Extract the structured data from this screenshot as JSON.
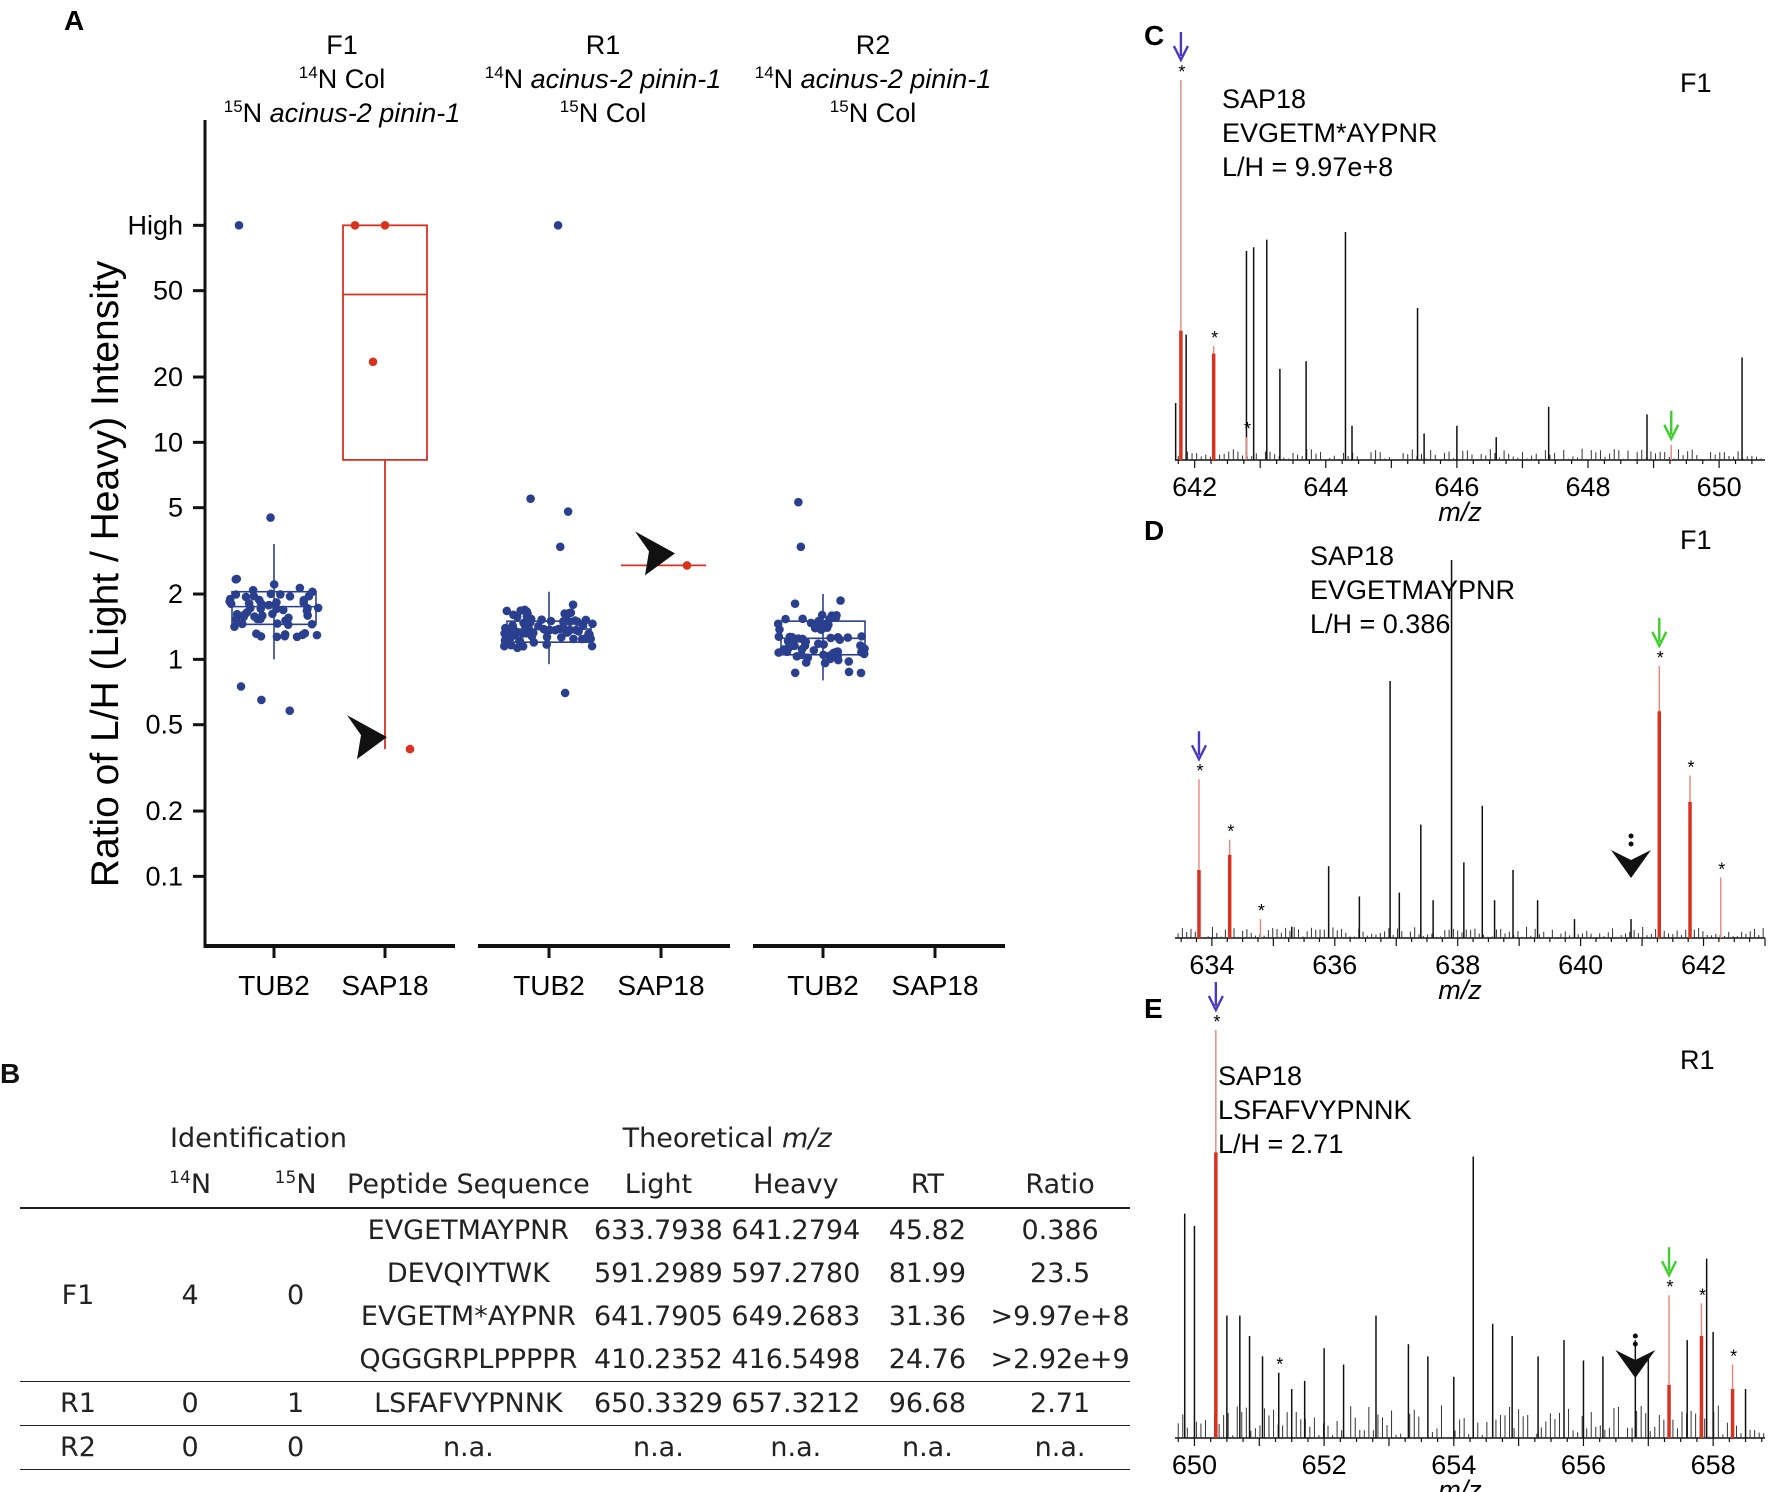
{
  "panel_labels": {
    "A": "A",
    "B": "B",
    "C": "C",
    "D": "D",
    "E": "E"
  },
  "colors": {
    "blue": "#2b3f8f",
    "red": "#d9331f",
    "black": "#111111",
    "green": "#3ecf2b",
    "purple": "#4a37c2"
  },
  "panelA": {
    "groups": [
      {
        "name": "F1",
        "line1": "Col",
        "line1_prefix": "14N",
        "line2": "acinus-2 pinin-1",
        "line2_prefix": "15N",
        "line1_italic": false,
        "line2_italic": true
      },
      {
        "name": "R1",
        "line1": "acinus-2 pinin-1",
        "line1_prefix": "14N",
        "line2": "Col",
        "line2_prefix": "15N",
        "line1_italic": true,
        "line2_italic": false
      },
      {
        "name": "R2",
        "line1": "acinus-2 pinin-1",
        "line1_prefix": "14N",
        "line2": "Col",
        "line2_prefix": "15N",
        "line1_italic": true,
        "line2_italic": false
      }
    ],
    "sup14": "14",
    "sup15": "15",
    "N": "N",
    "x_labels": [
      "TUB2",
      "SAP18",
      "TUB2",
      "SAP18",
      "TUB2",
      "SAP18"
    ]
  },
  "chart_data": [
    {
      "type": "box",
      "id": "A",
      "ylabel": "Ratio of L/H (Light / Heavy) Intensity",
      "yscale": "log",
      "ylim": [
        0.07,
        200
      ],
      "ytick_values": [
        0.1,
        0.2,
        0.5,
        1,
        2,
        5,
        10,
        20,
        50,
        100
      ],
      "ytick_labels": [
        "0.1",
        "0.2",
        "0.5",
        "1",
        "2",
        "5",
        "10",
        "20",
        "50",
        "High"
      ],
      "series": [
        {
          "group": "F1",
          "protein": "TUB2",
          "q1": 1.45,
          "median": 1.75,
          "q3": 2.05,
          "whisker_low": 1.0,
          "whisker_high": 3.4,
          "outliers": [
            100,
            4.5,
            0.58,
            0.65,
            0.75
          ],
          "n_points": 58
        },
        {
          "group": "F1",
          "protein": "SAP18",
          "q1": 8.3,
          "median": 48,
          "q3": 100,
          "whisker_low": 0.386,
          "whisker_high": 100,
          "points": [
            100,
            100,
            23.5,
            0.386
          ],
          "arrow_at": 0.386
        },
        {
          "group": "R1",
          "protein": "TUB2",
          "q1": 1.2,
          "median": 1.38,
          "q3": 1.5,
          "whisker_low": 0.95,
          "whisker_high": 2.05,
          "outliers": [
            100,
            5.5,
            4.8,
            3.3,
            0.7
          ],
          "n_points": 75
        },
        {
          "group": "R1",
          "protein": "SAP18",
          "median": 2.71,
          "points": [
            2.71
          ],
          "arrow_at": 2.71
        },
        {
          "group": "R2",
          "protein": "TUB2",
          "q1": 1.05,
          "median": 1.25,
          "q3": 1.5,
          "whisker_low": 0.8,
          "whisker_high": 2.0,
          "outliers": [
            5.3,
            3.3
          ],
          "n_points": 70
        }
      ]
    },
    {
      "type": "spectrum",
      "id": "C",
      "xlabel": "m/z",
      "xlim": [
        641.7,
        650.7
      ],
      "xtick_values": [
        642,
        644,
        646,
        648,
        650
      ],
      "xtick_labels": [
        "642",
        "644",
        "646",
        "648",
        "650"
      ],
      "labels": [
        "SAP18",
        "EVGETM*AYPNR",
        "L/H = 9.97e+8"
      ],
      "run": "F1",
      "peaks": [
        {
          "mz": 641.79,
          "h": 1.0,
          "c": "red",
          "star": true,
          "arrow": "purple"
        },
        {
          "mz": 641.79,
          "h": 0.34,
          "c": "redbar"
        },
        {
          "mz": 641.71,
          "h": 0.15,
          "c": "black"
        },
        {
          "mz": 641.87,
          "h": 0.33,
          "c": "black"
        },
        {
          "mz": 642.29,
          "h": 0.3,
          "c": "red",
          "star": true
        },
        {
          "mz": 642.29,
          "h": 0.28,
          "c": "redbar"
        },
        {
          "mz": 642.79,
          "h": 0.55,
          "c": "black"
        },
        {
          "mz": 642.79,
          "h": 0.06,
          "c": "red",
          "star": true
        },
        {
          "mz": 642.9,
          "h": 0.56,
          "c": "black"
        },
        {
          "mz": 643.1,
          "h": 0.58,
          "c": "black"
        },
        {
          "mz": 643.3,
          "h": 0.24,
          "c": "black"
        },
        {
          "mz": 643.7,
          "h": 0.26,
          "c": "black"
        },
        {
          "mz": 644.3,
          "h": 0.6,
          "c": "black"
        },
        {
          "mz": 644.4,
          "h": 0.09,
          "c": "black"
        },
        {
          "mz": 645.4,
          "h": 0.4,
          "c": "black"
        },
        {
          "mz": 645.5,
          "h": 0.07,
          "c": "black"
        },
        {
          "mz": 646.0,
          "h": 0.09,
          "c": "black"
        },
        {
          "mz": 646.6,
          "h": 0.06,
          "c": "black"
        },
        {
          "mz": 647.4,
          "h": 0.14,
          "c": "black"
        },
        {
          "mz": 648.9,
          "h": 0.12,
          "c": "black"
        },
        {
          "mz": 649.27,
          "h": 0.04,
          "c": "red",
          "arrow": "green"
        },
        {
          "mz": 650.35,
          "h": 0.27,
          "c": "black"
        }
      ]
    },
    {
      "type": "spectrum",
      "id": "D",
      "xlabel": "m/z",
      "xlim": [
        633.4,
        643.0
      ],
      "xtick_values": [
        634,
        636,
        638,
        640,
        642
      ],
      "xtick_labels": [
        "634",
        "636",
        "638",
        "640",
        "642"
      ],
      "labels": [
        "SAP18",
        "EVGETMAYPNR",
        "L/H = 0.386"
      ],
      "run": "F1",
      "peaks": [
        {
          "mz": 633.79,
          "h": 0.42,
          "c": "red",
          "star": true,
          "arrow": "purple"
        },
        {
          "mz": 633.79,
          "h": 0.18,
          "c": "redbar"
        },
        {
          "mz": 634.29,
          "h": 0.26,
          "c": "red",
          "star": true
        },
        {
          "mz": 634.29,
          "h": 0.22,
          "c": "redbar"
        },
        {
          "mz": 634.79,
          "h": 0.05,
          "c": "red",
          "star": true
        },
        {
          "mz": 635.3,
          "h": 0.03,
          "c": "black"
        },
        {
          "mz": 635.9,
          "h": 0.19,
          "c": "black"
        },
        {
          "mz": 636.4,
          "h": 0.11,
          "c": "black"
        },
        {
          "mz": 636.9,
          "h": 0.68,
          "c": "black"
        },
        {
          "mz": 637.05,
          "h": 0.12,
          "c": "black"
        },
        {
          "mz": 637.4,
          "h": 0.3,
          "c": "black"
        },
        {
          "mz": 637.6,
          "h": 0.1,
          "c": "black"
        },
        {
          "mz": 637.9,
          "h": 1.0,
          "c": "black"
        },
        {
          "mz": 638.1,
          "h": 0.2,
          "c": "black"
        },
        {
          "mz": 638.4,
          "h": 0.35,
          "c": "black"
        },
        {
          "mz": 638.6,
          "h": 0.1,
          "c": "black"
        },
        {
          "mz": 638.9,
          "h": 0.18,
          "c": "black"
        },
        {
          "mz": 639.3,
          "h": 0.1,
          "c": "black"
        },
        {
          "mz": 639.9,
          "h": 0.05,
          "c": "black"
        },
        {
          "mz": 640.82,
          "h": 0.05,
          "c": "black",
          "blackarrow": true
        },
        {
          "mz": 641.28,
          "h": 0.72,
          "c": "red",
          "star": true,
          "arrow": "green"
        },
        {
          "mz": 641.28,
          "h": 0.6,
          "c": "redbar"
        },
        {
          "mz": 641.78,
          "h": 0.43,
          "c": "red",
          "star": true
        },
        {
          "mz": 641.78,
          "h": 0.36,
          "c": "redbar"
        },
        {
          "mz": 642.28,
          "h": 0.16,
          "c": "red",
          "star": true
        }
      ]
    },
    {
      "type": "spectrum",
      "id": "E",
      "xlabel": "m/z",
      "xlim": [
        649.7,
        658.8
      ],
      "xtick_values": [
        650,
        652,
        654,
        656,
        658
      ],
      "xtick_labels": [
        "650",
        "652",
        "654",
        "656",
        "658"
      ],
      "labels": [
        "SAP18",
        "LSFAFVYPNNK",
        "L/H = 2.71"
      ],
      "run": "R1",
      "peaks": [
        {
          "mz": 650.33,
          "h": 1.0,
          "c": "red",
          "star": true,
          "arrow": "purple"
        },
        {
          "mz": 650.33,
          "h": 0.7,
          "c": "redbar"
        },
        {
          "mz": 649.85,
          "h": 0.55,
          "c": "black"
        },
        {
          "mz": 650.0,
          "h": 0.52,
          "c": "black"
        },
        {
          "mz": 650.5,
          "h": 0.3,
          "c": "black"
        },
        {
          "mz": 650.7,
          "h": 0.3,
          "c": "black"
        },
        {
          "mz": 650.85,
          "h": 0.25,
          "c": "black"
        },
        {
          "mz": 651.05,
          "h": 0.2,
          "c": "black"
        },
        {
          "mz": 651.3,
          "h": 0.16,
          "c": "black",
          "star": true
        },
        {
          "mz": 651.5,
          "h": 0.12,
          "c": "black"
        },
        {
          "mz": 651.7,
          "h": 0.14,
          "c": "black"
        },
        {
          "mz": 652.0,
          "h": 0.22,
          "c": "black"
        },
        {
          "mz": 652.3,
          "h": 0.18,
          "c": "black"
        },
        {
          "mz": 652.8,
          "h": 0.3,
          "c": "black"
        },
        {
          "mz": 653.3,
          "h": 0.23,
          "c": "black"
        },
        {
          "mz": 653.6,
          "h": 0.2,
          "c": "black"
        },
        {
          "mz": 654.0,
          "h": 0.15,
          "c": "black"
        },
        {
          "mz": 654.3,
          "h": 0.69,
          "c": "black"
        },
        {
          "mz": 654.6,
          "h": 0.28,
          "c": "black"
        },
        {
          "mz": 654.9,
          "h": 0.25,
          "c": "black"
        },
        {
          "mz": 655.3,
          "h": 0.2,
          "c": "black"
        },
        {
          "mz": 655.7,
          "h": 0.24,
          "c": "black"
        },
        {
          "mz": 656.0,
          "h": 0.19,
          "c": "black"
        },
        {
          "mz": 656.3,
          "h": 0.2,
          "c": "black"
        },
        {
          "mz": 656.8,
          "h": 0.24,
          "c": "black",
          "blackarrow": true
        },
        {
          "mz": 657.0,
          "h": 0.2,
          "c": "black"
        },
        {
          "mz": 657.32,
          "h": 0.35,
          "c": "red",
          "star": true,
          "arrow": "green"
        },
        {
          "mz": 657.32,
          "h": 0.13,
          "c": "redbar"
        },
        {
          "mz": 657.6,
          "h": 0.24,
          "c": "black"
        },
        {
          "mz": 657.82,
          "h": 0.33,
          "c": "red",
          "star": true
        },
        {
          "mz": 657.82,
          "h": 0.25,
          "c": "redbar"
        },
        {
          "mz": 657.9,
          "h": 0.44,
          "c": "black"
        },
        {
          "mz": 658.0,
          "h": 0.26,
          "c": "black"
        },
        {
          "mz": 658.3,
          "h": 0.18,
          "c": "red",
          "star": true
        },
        {
          "mz": 658.3,
          "h": 0.12,
          "c": "redbar"
        },
        {
          "mz": 658.5,
          "h": 0.12,
          "c": "black"
        }
      ]
    }
  ],
  "tableB": {
    "header_identification": "Identification",
    "header_theoretical": "Theoretical",
    "header_mz": "m/z",
    "col_14N_sup": "14",
    "col_15N_sup": "15",
    "col_N": "N",
    "col_peptide": "Peptide Sequence",
    "col_light": "Light",
    "col_heavy": "Heavy",
    "col_rt": "RT",
    "col_ratio": "Ratio",
    "rows": [
      {
        "run": "F1",
        "n14": "4",
        "n15": "0",
        "seq": "EVGETMAYPNR",
        "light": "633.7938",
        "heavy": "641.2794",
        "rt": "45.82",
        "ratio": "0.386"
      },
      {
        "run": "",
        "n14": "",
        "n15": "",
        "seq": "DEVQIYTWK",
        "light": "591.2989",
        "heavy": "597.2780",
        "rt": "81.99",
        "ratio": "23.5"
      },
      {
        "run": "",
        "n14": "",
        "n15": "",
        "seq": "EVGETM*AYPNR",
        "light": "641.7905",
        "heavy": "649.2683",
        "rt": "31.36",
        "ratio": ">9.97e+8"
      },
      {
        "run": "",
        "n14": "",
        "n15": "",
        "seq": "QGGGRPLPPPPR",
        "light": "410.2352",
        "heavy": "416.5498",
        "rt": "24.76",
        "ratio": ">2.92e+9"
      },
      {
        "run": "R1",
        "n14": "0",
        "n15": "1",
        "seq": "LSFAFVYPNNK",
        "light": "650.3329",
        "heavy": "657.3212",
        "rt": "96.68",
        "ratio": "2.71"
      },
      {
        "run": "R2",
        "n14": "0",
        "n15": "0",
        "seq": "n.a.",
        "light": "n.a.",
        "heavy": "n.a.",
        "rt": "n.a.",
        "ratio": "n.a."
      }
    ]
  }
}
